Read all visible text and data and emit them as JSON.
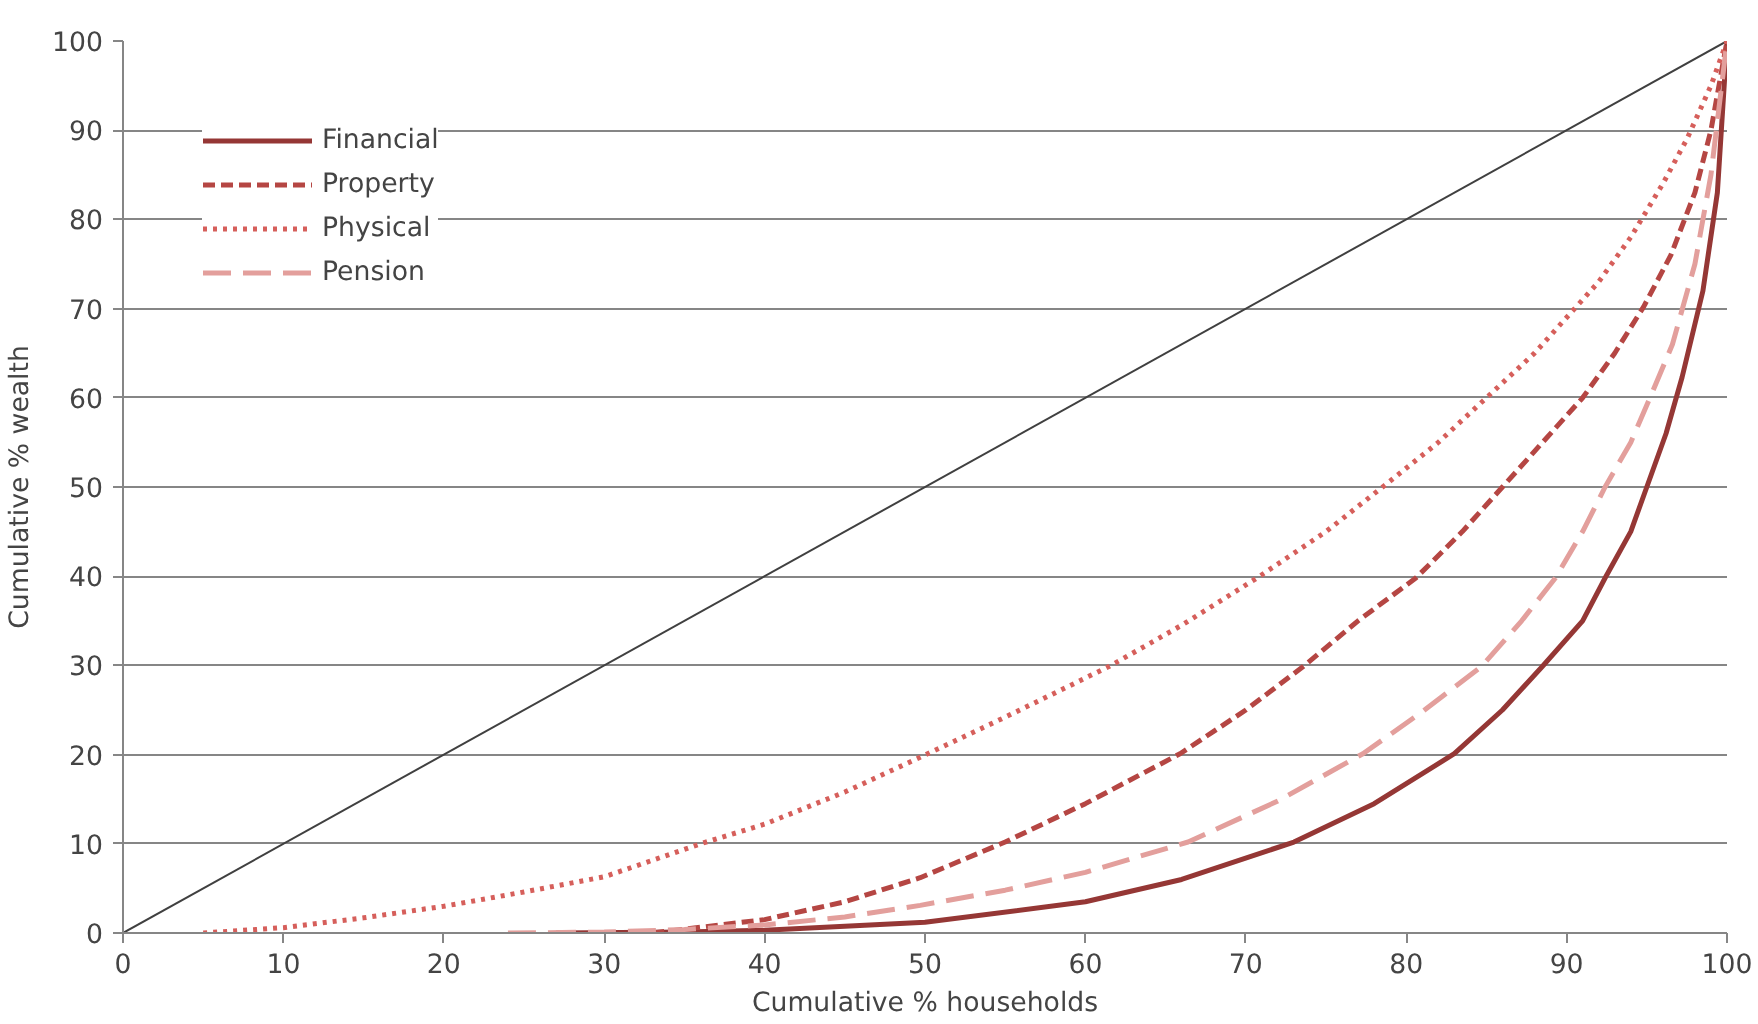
{
  "chart_data": {
    "type": "line",
    "xlabel": "Cumulative % households",
    "ylabel": "Cumulative % wealth",
    "xlim": [
      0,
      100
    ],
    "ylim": [
      0,
      100
    ],
    "xticks": [
      0,
      10,
      20,
      30,
      40,
      50,
      60,
      70,
      80,
      90,
      100
    ],
    "yticks": [
      0,
      10,
      20,
      30,
      40,
      50,
      60,
      70,
      80,
      90,
      100
    ],
    "grid": "y",
    "legend": "top left",
    "series": [
      {
        "color": "#404040",
        "line_style": "solid",
        "x": [
          0,
          100
        ],
        "values": [
          0,
          100
        ]
      },
      {
        "name": "Financial",
        "color": "#953735",
        "line_style": "solid",
        "x": [
          27,
          35,
          40,
          50,
          60,
          66,
          73,
          78,
          83,
          86,
          88.5,
          91,
          92.4,
          94,
          95,
          96.2,
          97.2,
          98.5,
          99.4,
          100
        ],
        "values": [
          0,
          0.1,
          0.3,
          1.2,
          3.5,
          6,
          10.2,
          14.5,
          20.1,
          25,
          29.9,
          35,
          39.8,
          45,
          50,
          56,
          62.3,
          72,
          83,
          100
        ]
      },
      {
        "name": "Property",
        "color": "#b54643",
        "line_style": "dashed",
        "x": [
          33,
          40,
          45,
          49.7,
          55,
          60,
          65.9,
          70,
          73.6,
          77,
          80.6,
          83.5,
          86,
          88.5,
          91,
          93,
          94.8,
          96.5,
          98,
          99,
          100
        ],
        "values": [
          0,
          1.5,
          3.5,
          6.2,
          10.2,
          14.5,
          20.1,
          25,
          29.9,
          35,
          39.8,
          45,
          50,
          55,
          60,
          65,
          70.2,
          76,
          83,
          90,
          100
        ]
      },
      {
        "name": "Physical",
        "color": "#d65f5b",
        "line_style": "dotted",
        "x": [
          5,
          10,
          15,
          20,
          25,
          30,
          36,
          40,
          45,
          49.7,
          55,
          61.5,
          66,
          70.7,
          75,
          78.6,
          82,
          85,
          88,
          90,
          92,
          94,
          96,
          97.5,
          99,
          100
        ],
        "values": [
          0,
          0.6,
          1.7,
          3,
          4.6,
          6.3,
          10,
          12.2,
          15.8,
          19.7,
          24.2,
          29.9,
          34.5,
          39.8,
          45,
          50.1,
          55,
          60,
          65,
          69,
          73,
          78,
          84,
          89,
          95,
          100
        ]
      },
      {
        "name": "Pension",
        "color": "#e39f9c",
        "line_style": "longdash",
        "x": [
          24,
          30,
          35,
          40,
          45,
          49.7,
          55,
          60,
          66.4,
          72,
          77.3,
          81,
          84.7,
          87.2,
          89.3,
          91,
          92.4,
          94,
          95.2,
          96.6,
          98,
          99,
          100
        ],
        "values": [
          0,
          0.1,
          0.4,
          0.9,
          1.8,
          3.1,
          4.8,
          6.8,
          10.2,
          14.8,
          20.1,
          24.8,
          29.9,
          35,
          39.8,
          45,
          50,
          55,
          60,
          66,
          75,
          85,
          100
        ]
      }
    ]
  }
}
